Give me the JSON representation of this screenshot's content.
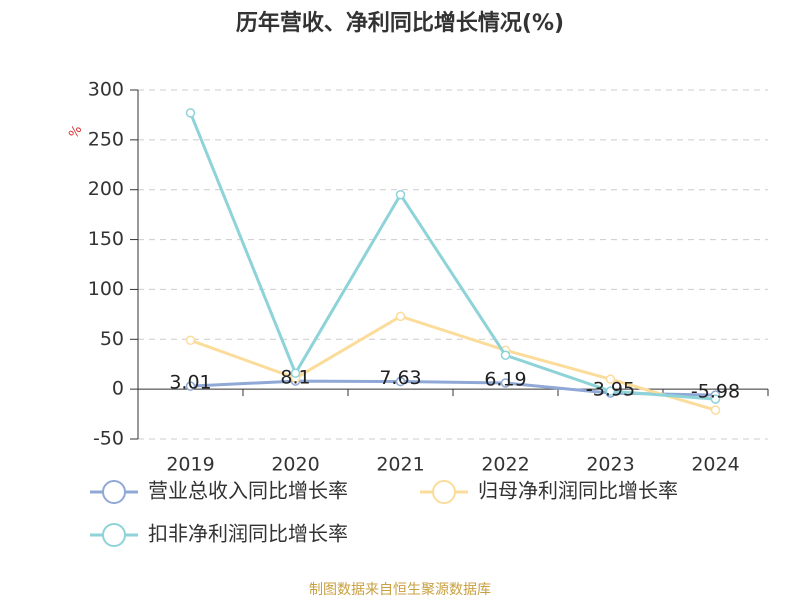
{
  "chart_data": {
    "type": "line",
    "title": "历年营收、净利同比增长情况(%)",
    "y_unit": "%",
    "categories": [
      "2019",
      "2020",
      "2021",
      "2022",
      "2023",
      "2024"
    ],
    "series": [
      {
        "name": "营业总收入同比增长率",
        "color": "#8fa8d6",
        "values": [
          3.01,
          8.1,
          7.63,
          6.19,
          -3.95,
          -5.98
        ],
        "show_labels": true
      },
      {
        "name": "归母净利润同比增长率",
        "color": "#fbdc9a",
        "values": [
          49,
          11,
          73,
          39,
          10,
          -21
        ]
      },
      {
        "name": "扣非净利润同比增长率",
        "color": "#8dd3d8",
        "values": [
          277,
          16,
          195,
          34,
          -2,
          -10
        ]
      }
    ],
    "ylim": [
      -50,
      300
    ],
    "yticks": [
      -50,
      0,
      50,
      100,
      150,
      200,
      250,
      300
    ],
    "grid": true,
    "footer": "制图数据来自恒生聚源数据库"
  }
}
